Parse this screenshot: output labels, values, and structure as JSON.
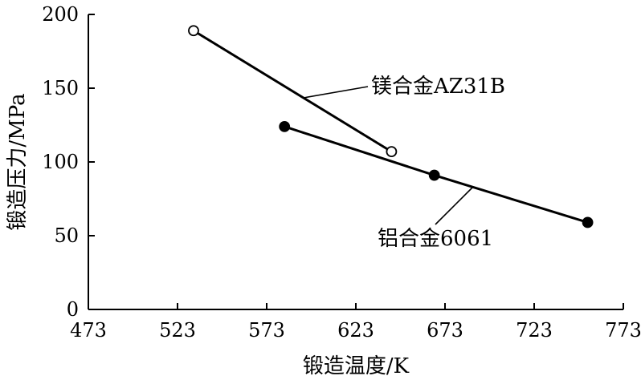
{
  "chart_data": {
    "type": "line",
    "xlabel": "锻造温度/K",
    "ylabel": "锻造压力/MPa",
    "xlim": [
      473,
      773
    ],
    "ylim": [
      0,
      200
    ],
    "x_ticks": [
      473,
      523,
      573,
      623,
      673,
      723,
      773
    ],
    "y_ticks": [
      0,
      50,
      100,
      150,
      200
    ],
    "grid": false,
    "legend": "none",
    "series": [
      {
        "name": "镁合金AZ31B",
        "marker": "open-circle",
        "color": "#000000",
        "points": [
          [
            532,
            189
          ],
          [
            643,
            107
          ]
        ]
      },
      {
        "name": "铝合金6061",
        "marker": "filled-circle",
        "color": "#000000",
        "points": [
          [
            583,
            124
          ],
          [
            667,
            91
          ],
          [
            753,
            59
          ]
        ]
      }
    ]
  }
}
